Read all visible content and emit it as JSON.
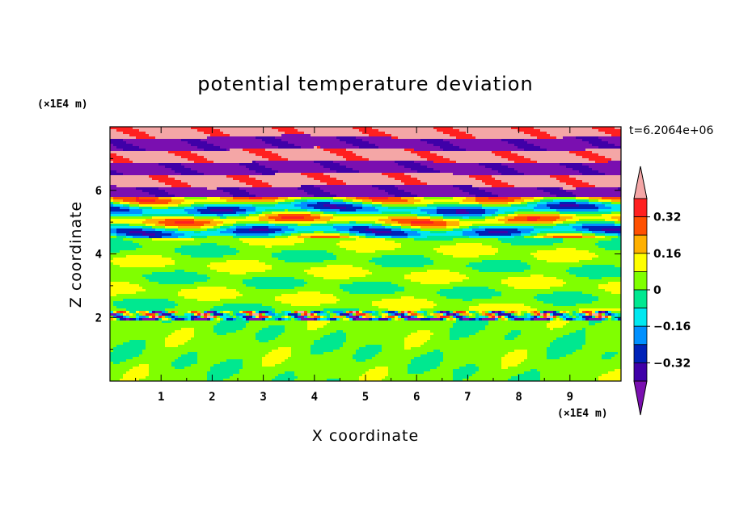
{
  "chart_data": {
    "type": "heatmap",
    "title": "potential temperature deviation",
    "xlabel": "X coordinate",
    "ylabel": "Z coordinate",
    "x_unit": "(×1E4 m)",
    "y_unit": "(×1E4 m)",
    "time_label": "t=6.2064e+06",
    "xlim": [
      0,
      10
    ],
    "ylim": [
      0,
      8
    ],
    "x_ticks": [
      "1",
      "2",
      "3",
      "4",
      "5",
      "6",
      "7",
      "8",
      "9"
    ],
    "x_tick_values": [
      1,
      2,
      3,
      4,
      5,
      6,
      7,
      8,
      9
    ],
    "y_ticks": [
      "2",
      "4",
      "6"
    ],
    "y_tick_values": [
      2,
      4,
      6
    ],
    "colorbar": {
      "levels": [
        -0.4,
        -0.32,
        -0.24,
        -0.16,
        -0.08,
        0,
        0.08,
        0.16,
        0.24,
        0.32,
        0.4
      ],
      "labels": [
        "0.32",
        "0.16",
        "0",
        "−0.16",
        "−0.32"
      ],
      "label_values": [
        0.32,
        0.16,
        0,
        -0.16,
        -0.32
      ],
      "colors": [
        "#7a0fb0",
        "#3f00a8",
        "#0022b8",
        "#0090ff",
        "#00e8f0",
        "#00e890",
        "#80ff00",
        "#ffff00",
        "#ffb000",
        "#ff5000",
        "#ff2020",
        "#f4a6a6"
      ],
      "extend": "both"
    },
    "field": {
      "description_of_layers": "values in colorbar level index (0=below -0.4, 11=above 0.4) by height band",
      "bands": [
        {
          "z_range": [
            0,
            1.9
          ],
          "dominant": [
            5,
            6
          ]
        },
        {
          "z_range": [
            1.9,
            2.2
          ],
          "dominant": [
            1,
            2,
            3,
            9,
            10,
            11
          ]
        },
        {
          "z_range": [
            2.2,
            4.5
          ],
          "dominant": [
            5,
            6
          ]
        },
        {
          "z_range": [
            4.5,
            5.8
          ],
          "dominant": [
            2,
            3,
            4,
            5,
            6,
            7,
            8,
            9,
            10
          ]
        },
        {
          "z_range": [
            5.8,
            8.0
          ],
          "dominant": [
            0,
            1,
            10,
            11
          ]
        }
      ]
    }
  }
}
